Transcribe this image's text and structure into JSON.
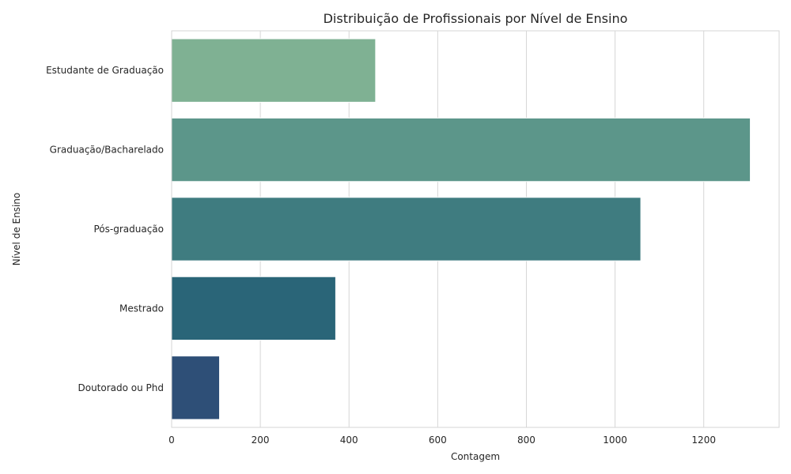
{
  "chart_data": {
    "type": "bar",
    "orientation": "horizontal",
    "title": "Distribuição de Profissionais por Nível de Ensino",
    "xlabel": "Contagem",
    "ylabel": "Nível de Ensino",
    "categories": [
      "Estudante de Graduação",
      "Graduação/Bacharelado",
      "Pós-graduação",
      "Mestrado",
      "Doutorado ou Phd"
    ],
    "values": [
      460,
      1305,
      1058,
      370,
      108
    ],
    "colors": [
      "#7fb193",
      "#5c968a",
      "#3f7c80",
      "#2a6578",
      "#2e4f77"
    ],
    "xlim": [
      0,
      1370
    ],
    "xticks": [
      0,
      200,
      400,
      600,
      800,
      1000,
      1200
    ],
    "grid": true
  }
}
